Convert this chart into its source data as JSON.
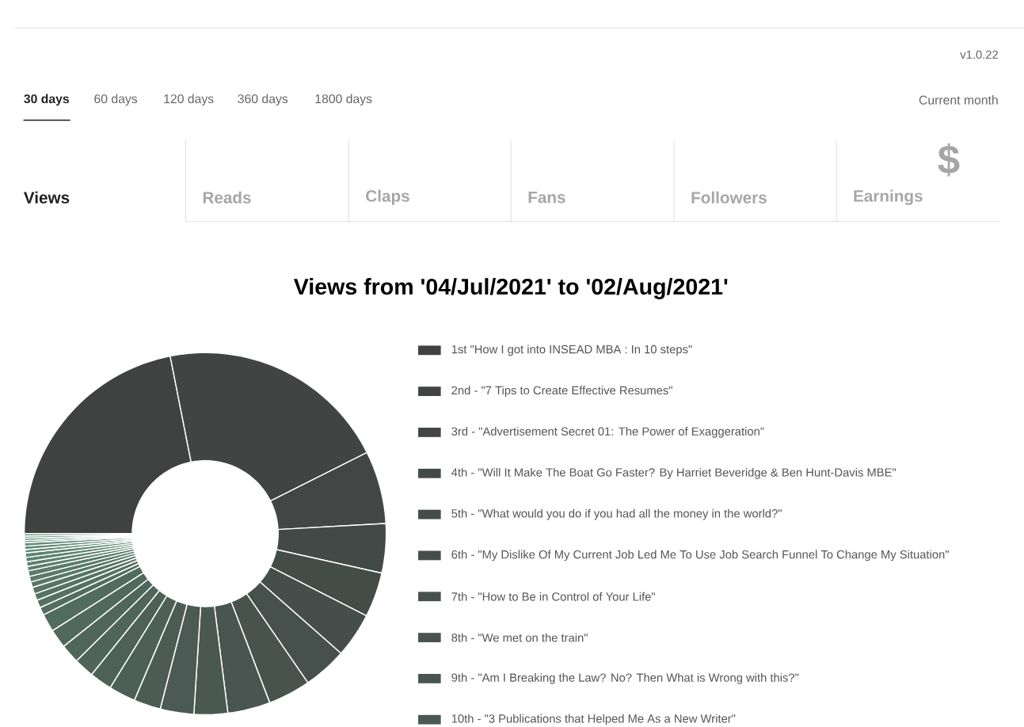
{
  "chart_data": {
    "type": "donut",
    "title": "Views from '04/Jul/2021' to '02/Aug/2021'",
    "categories": [
      "1st \"How I got into INSEAD MBA : In 10 steps\"",
      "2nd - \"7 Tips to Create Effective Resumes\"",
      "3rd - \"Advertisement Secret 01: The Power of Exaggeration\"",
      "4th - \"Will It Make The Boat Go Faster? By Harriet Beveridge & Ben Hunt-Davis MBE\"",
      "5th - \"What would you do if you had all the money in the world?\"",
      "6th - \"My Dislike Of My Current Job Led Me To Use Job Search Funnel To Change My Situation\"",
      "7th - \"How to Be in Control of Your Life\"",
      "8th - \"We met on the train\"",
      "9th - \"Am I Breaking the Law? No? Then What is Wrong with this?\"",
      "10th - \"3 Publications that Helped Me As a New Writer\"",
      null,
      null,
      null,
      null,
      null,
      null,
      null,
      null,
      null,
      null,
      null,
      null,
      null,
      null,
      null,
      null,
      null,
      null,
      null,
      null,
      null,
      null,
      null,
      null,
      null,
      null
    ],
    "values": [
      21.9,
      20.7,
      6.5,
      4.4,
      4.0,
      4.0,
      3.9,
      3.8,
      3.8,
      3.0,
      3.0,
      2.4,
      2.4,
      2.0,
      1.8,
      1.7,
      1.7,
      1.6,
      0.7,
      0.7,
      0.6,
      0.6,
      0.5,
      0.5,
      0.5,
      0.4,
      0.4,
      0.4,
      0.4,
      0.3,
      0.3,
      0.3,
      0.2,
      0.2,
      0.2,
      0.2
    ],
    "colors": [
      "#404241",
      "#414443",
      "#424745",
      "#434947",
      "#444c48",
      "#454e4a",
      "#46504c",
      "#48534e",
      "#495550",
      "#4a5852",
      "#4b5a54",
      "#4c5c55",
      "#4d5f57",
      "#4e6159",
      "#4f645b",
      "#50665d",
      "#51685f",
      "#526b61",
      "#546d62",
      "#557064",
      "#567266",
      "#577468",
      "#58776a",
      "#59796c",
      "#5a7c6e",
      "#5b7e6f",
      "#5c8071",
      "#5d8373",
      "#5e8575",
      "#5f8877",
      "#618a79",
      "#628c7b",
      "#638f7c",
      "#64917e",
      "#659480",
      "#669682"
    ],
    "legend": "right",
    "annotations": [
      "v1.0.22",
      "30 days",
      "60 days",
      "120 days",
      "360 days",
      "1800 days",
      "Current month",
      "Views",
      "Reads",
      "Claps",
      "Fans",
      "Followers",
      "Earnings",
      "$"
    ]
  }
}
